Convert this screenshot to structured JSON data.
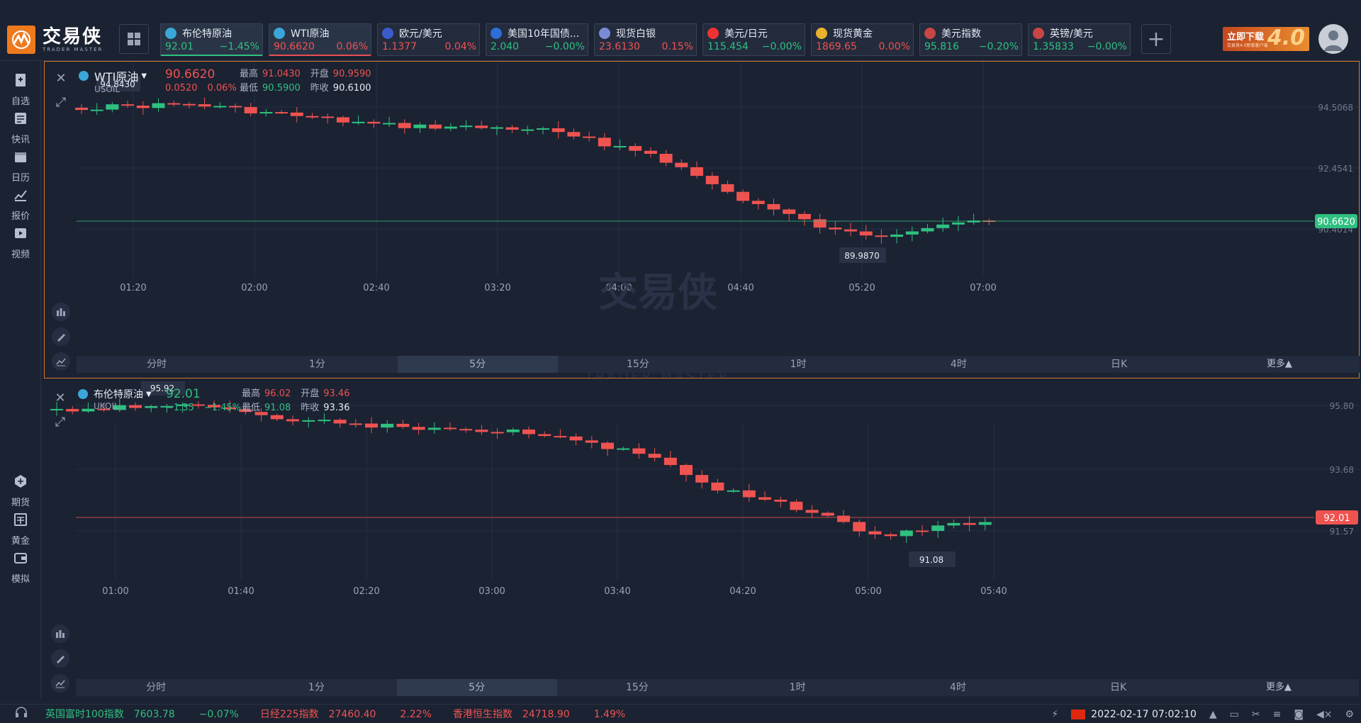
{
  "app": {
    "logo_cn": "交易侠",
    "logo_en": "TRADER MASTER",
    "watermark_cn": "交易侠",
    "watermark_en": "TRADER MASTER"
  },
  "tickers": [
    {
      "name": "布伦特原油",
      "price": "92.01",
      "change": "−1.45%",
      "dir": "up",
      "icon_color": "#3aa7d8",
      "active": true
    },
    {
      "name": "WTI原油",
      "price": "90.6620",
      "change": "0.06%",
      "dir": "dn",
      "icon_color": "#3aa7d8",
      "active": true
    },
    {
      "name": "欧元/美元",
      "price": "1.1377",
      "change": "0.04%",
      "dir": "dn",
      "icon_color": "#3b5ccc",
      "active": false
    },
    {
      "name": "美国10年国债...",
      "price": "2.040",
      "change": "−0.00%",
      "dir": "up",
      "icon_color": "#2d6fd6",
      "active": false
    },
    {
      "name": "现货白银",
      "price": "23.6130",
      "change": "0.15%",
      "dir": "dn",
      "icon_color": "#7a8bd6",
      "active": false
    },
    {
      "name": "美元/日元",
      "price": "115.454",
      "change": "−0.00%",
      "dir": "up",
      "icon_color": "#e33",
      "active": false
    },
    {
      "name": "现货黄金",
      "price": "1869.65",
      "change": "0.00%",
      "dir": "dn",
      "icon_color": "#e9b12c",
      "active": false
    },
    {
      "name": "美元指数",
      "price": "95.816",
      "change": "−0.20%",
      "dir": "up",
      "icon_color": "#c84646",
      "active": false
    },
    {
      "name": "英镑/美元",
      "price": "1.35833",
      "change": "−0.00%",
      "dir": "up",
      "icon_color": "#c84646",
      "active": false
    }
  ],
  "promo": {
    "line1": "立即下载",
    "line2": "交易侠4.0新版客户端",
    "big": "4.0"
  },
  "sidebar": [
    {
      "label": "自选",
      "icon": "bookmark-icon"
    },
    {
      "label": "快讯",
      "icon": "news-icon"
    },
    {
      "label": "日历",
      "icon": "calendar-icon"
    },
    {
      "label": "报价",
      "icon": "quote-chart-icon"
    },
    {
      "label": "视频",
      "icon": "video-icon"
    },
    {
      "label": "期货",
      "icon": "futures-icon"
    },
    {
      "label": "黄金",
      "icon": "gold-icon"
    },
    {
      "label": "模拟",
      "icon": "wallet-icon"
    }
  ],
  "timeframes": [
    "分时",
    "1分",
    "5分",
    "15分",
    "1时",
    "4时",
    "日K",
    "更多▲"
  ],
  "panels": [
    {
      "name": "WTI原油",
      "code": "USOIL",
      "price": "90.6620",
      "change": "0.0520",
      "change_pct": "0.06%",
      "dir": "dn",
      "labels": {
        "high": "最高",
        "open": "开盘",
        "low": "最低",
        "prev": "昨收"
      },
      "high": "91.0430",
      "open": "90.9590",
      "low": "90.5900",
      "prev_close": "90.6100",
      "max_label": "94.8430",
      "min_label": "89.9870",
      "current_tag": "90.6620",
      "current_color": "#2fc080",
      "y_ticks": [
        "94.5068",
        "92.4541",
        "90.4014"
      ],
      "x_ticks": [
        "01:20",
        "02:00",
        "02:40",
        "03:20",
        "04:00",
        "04:40",
        "05:20",
        "07:00"
      ]
    },
    {
      "name": "布伦特原油",
      "code": "UKOIL",
      "price": "92.01",
      "change": "−1.35",
      "change_pct": "−1.45%",
      "dir": "up",
      "labels": {
        "high": "最高",
        "open": "开盘",
        "low": "最低",
        "prev": "昨收"
      },
      "high": "96.02",
      "open": "93.46",
      "low": "91.08",
      "prev_close": "93.36",
      "max_label": "95.92",
      "min_label": "91.08",
      "current_tag": "92.01",
      "current_color": "#ef5350",
      "y_ticks": [
        "95.80",
        "93.68",
        "91.57"
      ],
      "x_ticks": [
        "01:00",
        "01:40",
        "02:20",
        "03:00",
        "03:40",
        "04:20",
        "05:00",
        "05:40"
      ]
    }
  ],
  "status_bar": [
    {
      "name": "英国富时100指数",
      "value": "7603.78",
      "change": "−0.07%",
      "dir": "up"
    },
    {
      "name": "日经225指数",
      "value": "27460.40",
      "change": "2.22%",
      "dir": "dn"
    },
    {
      "name": "香港恒生指数",
      "value": "24718.90",
      "change": "1.49%",
      "dir": "dn"
    }
  ],
  "clock": "2022-02-17 07:02:10"
}
